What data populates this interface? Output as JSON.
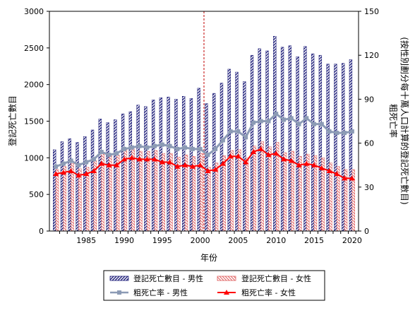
{
  "chart_data": {
    "type": "bar",
    "title": "",
    "xlabel": "年份",
    "ylabel": "登記死亡數目",
    "y2label": "粗死亡率",
    "y2label_sub": "(按性別劃分每十萬人口計算的登記死亡數目)",
    "x": [
      1981,
      1982,
      1983,
      1984,
      1985,
      1986,
      1987,
      1988,
      1989,
      1990,
      1991,
      1992,
      1993,
      1994,
      1995,
      1996,
      1997,
      1998,
      1999,
      2000,
      2001,
      2002,
      2003,
      2004,
      2005,
      2006,
      2007,
      2008,
      2009,
      2010,
      2011,
      2012,
      2013,
      2014,
      2015,
      2016,
      2017,
      2018,
      2019,
      2020
    ],
    "xticks": [
      1985,
      1990,
      1995,
      2000,
      2005,
      2010,
      2015,
      2020
    ],
    "ylim": [
      0,
      3000
    ],
    "yticks": [
      0,
      500,
      1000,
      1500,
      2000,
      2500,
      3000
    ],
    "y2lim": [
      0,
      150
    ],
    "y2ticks": [
      0,
      30,
      60,
      90,
      120,
      150
    ],
    "vline_x": 2000.5,
    "series": [
      {
        "name": "登記死亡數目 - 男性",
        "kind": "bar",
        "axis": "left",
        "values": [
          1110,
          1220,
          1260,
          1210,
          1290,
          1380,
          1530,
          1480,
          1520,
          1600,
          1630,
          1720,
          1700,
          1790,
          1820,
          1830,
          1800,
          1840,
          1810,
          1950,
          1740,
          1880,
          2020,
          2210,
          2170,
          2040,
          2400,
          2490,
          2460,
          2660,
          2510,
          2530,
          2380,
          2520,
          2420,
          2400,
          2280,
          2280,
          2290,
          2340
        ]
      },
      {
        "name": "登記死亡數目 - 女性",
        "kind": "bar",
        "axis": "left",
        "values": [
          840,
          880,
          920,
          850,
          870,
          960,
          1060,
          1030,
          1040,
          1110,
          1120,
          1090,
          1090,
          1100,
          1060,
          1060,
          1010,
          1040,
          1020,
          1060,
          870,
          930,
          1030,
          1100,
          1110,
          1000,
          1160,
          1220,
          1150,
          1210,
          1070,
          1090,
          1020,
          1050,
          1030,
          1000,
          930,
          880,
          840,
          840
        ]
      },
      {
        "name": "粗死亡率 - 男性",
        "kind": "line",
        "axis": "right",
        "values": [
          44,
          46,
          48,
          45,
          47,
          49,
          54,
          52,
          53,
          56,
          57,
          58,
          57,
          58,
          59,
          58,
          56,
          57,
          56,
          56,
          52,
          56,
          62,
          68,
          68,
          64,
          74,
          75,
          75,
          80,
          76,
          77,
          73,
          77,
          73,
          73,
          68,
          67,
          67,
          68
        ]
      },
      {
        "name": "粗死亡率 - 女性",
        "kind": "line",
        "axis": "right",
        "values": [
          39,
          40,
          41,
          38,
          39,
          41,
          46,
          45,
          45,
          49,
          50,
          49,
          49,
          49,
          47,
          47,
          44,
          45,
          44,
          45,
          41,
          42,
          46,
          51,
          51,
          47,
          54,
          56,
          52,
          53,
          49,
          48,
          45,
          46,
          45,
          43,
          41,
          39,
          36,
          36
        ]
      }
    ],
    "grid": false,
    "legend_position": "bottom"
  },
  "colors": {
    "male_bar": "#1f1f7a",
    "female_bar": "#e06060",
    "male_line": "#8c9bb5",
    "female_line": "#ff0000",
    "vline": "#c00000",
    "plot_bg": "#ffffff",
    "axis": "#000000"
  }
}
